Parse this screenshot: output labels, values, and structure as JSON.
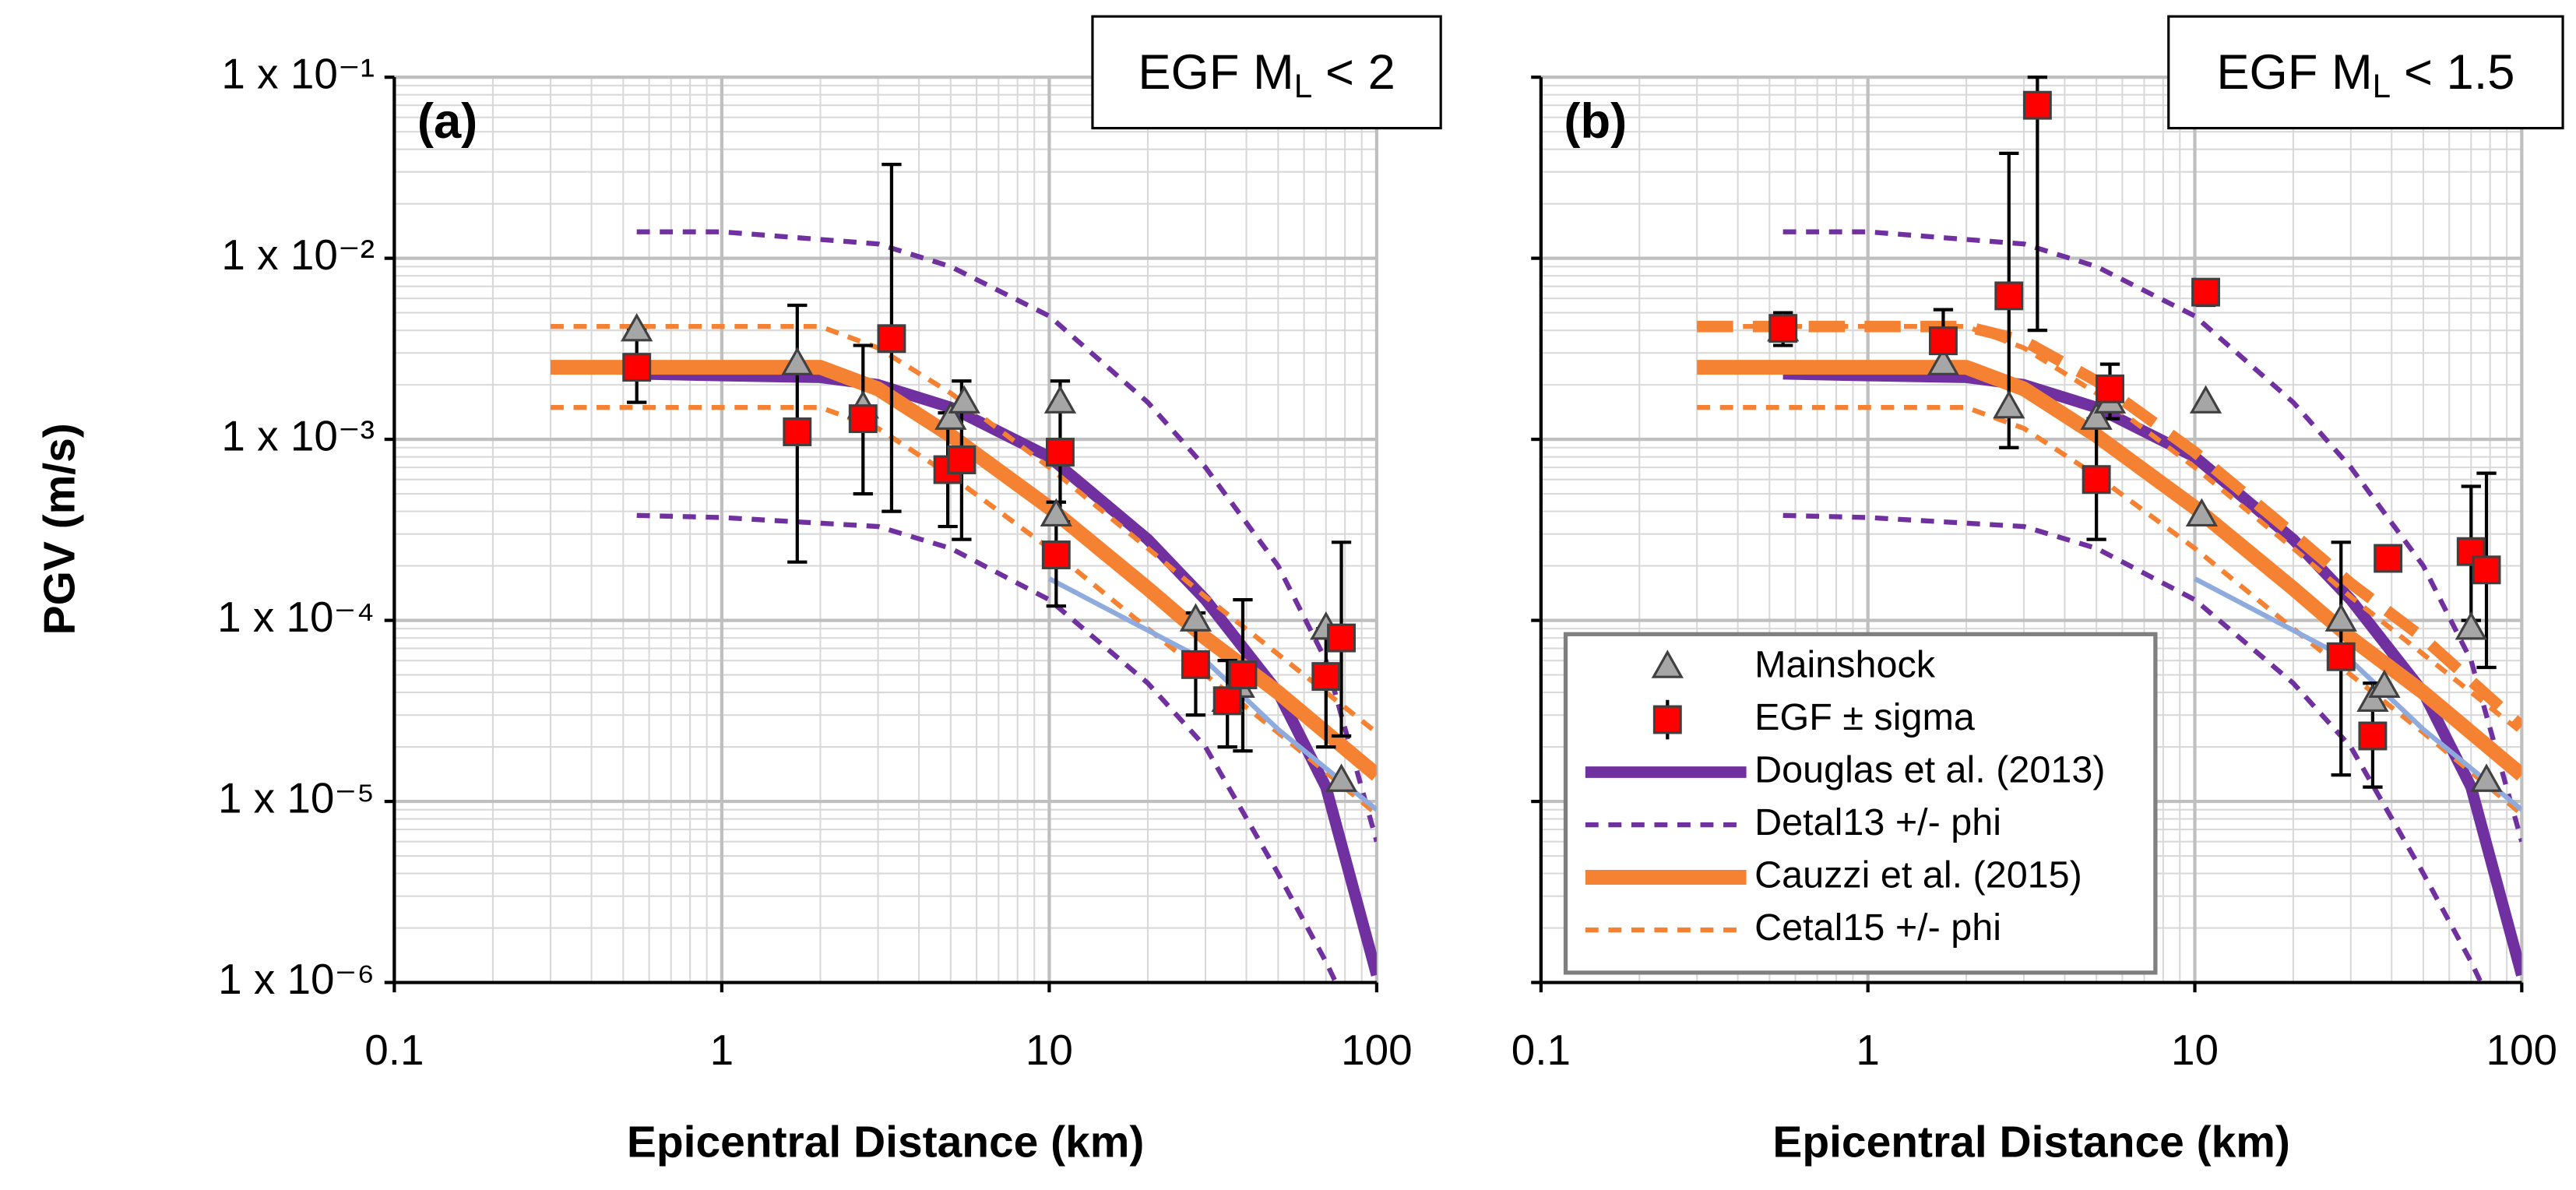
{
  "chart_data": [
    {
      "type": "line",
      "panel_label": "(a)",
      "box_label": {
        "prefix": "EGF M",
        "subscript": "L",
        "suffix": "< 2"
      },
      "xlabel": "Epicentral Distance (km)",
      "ylabel": "PGV (m/s)",
      "xscale": "log",
      "yscale": "log",
      "grid": true,
      "xlim": [
        0.1,
        100
      ],
      "ylim": [
        1e-06,
        0.1
      ],
      "xticks": [
        0.1,
        1,
        10,
        100
      ],
      "yticks": [
        {
          "value": 1e-06,
          "label": "1 x 10⁻⁶"
        },
        {
          "value": 1e-05,
          "label": "1 x 10⁻⁵"
        },
        {
          "value": 0.0001,
          "label": "1 x 10⁻⁴"
        },
        {
          "value": 0.001,
          "label": "1 x 10⁻³"
        },
        {
          "value": 0.01,
          "label": "1 x 10⁻²"
        },
        {
          "value": 0.1,
          "label": "1 x 10⁻¹"
        }
      ],
      "series": [
        {
          "name": "Mainshock",
          "kind": "marker",
          "marker": "triangle",
          "color": "#a6a6a6",
          "x": [
            0.55,
            1.7,
            2.7,
            5.0,
            5.5,
            10.5,
            10.8,
            28,
            35,
            38,
            70,
            78
          ],
          "values": [
            0.004,
            0.0026,
            0.0015,
            0.0013,
            0.0016,
            0.00038,
            0.0016,
            0.0001,
            3.6e-05,
            4.3e-05,
            9e-05,
            1.3e-05
          ]
        },
        {
          "name": "EGF ± sigma",
          "kind": "marker",
          "marker": "square",
          "color": "#ff0000",
          "x": [
            0.55,
            1.7,
            2.7,
            3.3,
            4.9,
            5.4,
            10.5,
            10.8,
            28,
            35,
            39,
            70,
            78
          ],
          "values": [
            0.0025,
            0.0011,
            0.0013,
            0.0036,
            0.00068,
            0.00077,
            0.00023,
            0.00085,
            5.7e-05,
            3.6e-05,
            5e-05,
            4.9e-05,
            8e-05
          ],
          "error_low": [
            0.0016,
            0.00021,
            0.0005,
            0.0004,
            0.00033,
            0.00028,
            0.00012,
            0.00035,
            3e-05,
            2e-05,
            1.9e-05,
            2e-05,
            2.3e-05
          ],
          "error_high": [
            0.004,
            0.0055,
            0.0033,
            0.033,
            0.0014,
            0.0021,
            0.00045,
            0.0021,
            0.00011,
            6e-05,
            0.00013,
            9e-05,
            0.00027
          ]
        },
        {
          "name": "Douglas et al. (2013)",
          "kind": "line",
          "style": "thick",
          "color": "#7030a0",
          "curves": [
            {
              "x": [
                0.55,
                1,
                2,
                3,
                5,
                10,
                20,
                30,
                50,
                70,
                100
              ],
              "values": [
                0.0023,
                0.00225,
                0.0022,
                0.002,
                0.0015,
                0.0008,
                0.00028,
                0.00013,
                4e-05,
                1.2e-05,
                1.1e-06
              ]
            }
          ]
        },
        {
          "name": "Detal13 +/- phi",
          "kind": "line",
          "style": "dashed",
          "color": "#7030a0",
          "curves": [
            {
              "x": [
                0.55,
                1,
                3,
                5,
                10,
                20,
                30,
                50,
                70,
                100
              ],
              "values": [
                0.014,
                0.014,
                0.012,
                0.009,
                0.0048,
                0.0016,
                0.0007,
                0.0002,
                6e-05,
                6e-06
              ]
            },
            {
              "x": [
                0.55,
                1,
                3,
                5,
                10,
                20,
                30,
                50,
                70,
                75
              ],
              "values": [
                0.00038,
                0.00037,
                0.00033,
                0.00025,
                0.00013,
                4.5e-05,
                2e-05,
                4e-06,
                1.3e-06,
                1e-06
              ]
            }
          ]
        },
        {
          "name": "Cauzzi et al. (2015)",
          "kind": "line",
          "style": "thick",
          "color": "#f58232",
          "curves": [
            {
              "x": [
                0.3,
                2,
                3,
                5,
                10,
                20,
                30,
                50,
                100
              ],
              "values": [
                0.0025,
                0.0025,
                0.0019,
                0.00105,
                0.00042,
                0.00015,
                8e-05,
                4e-05,
                1.4e-05
              ]
            }
          ]
        },
        {
          "name": "Cetal15 +/- phi",
          "kind": "line",
          "style": "dashed",
          "color": "#f58232",
          "curves": [
            {
              "x": [
                0.3,
                2,
                3,
                5,
                10,
                20,
                30,
                50,
                100
              ],
              "values": [
                0.0042,
                0.0042,
                0.0032,
                0.0018,
                0.0007,
                0.00025,
                0.000135,
                6.5e-05,
                2.4e-05
              ]
            },
            {
              "x": [
                0.3,
                2,
                3,
                5,
                10,
                20,
                30,
                50,
                100
              ],
              "values": [
                0.0015,
                0.0015,
                0.00115,
                0.00063,
                0.00025,
                9e-05,
                5e-05,
                2.4e-05,
                8.5e-06
              ]
            }
          ]
        },
        {
          "kind": "line",
          "style": "thin",
          "color": "#8faadc",
          "curves": [
            {
              "x": [
                10,
                30,
                50,
                100
              ],
              "values": [
                0.00017,
                6e-05,
                2.5e-05,
                9e-06
              ]
            }
          ]
        }
      ]
    },
    {
      "type": "line",
      "panel_label": "(b)",
      "box_label": {
        "prefix": "EGF M",
        "subscript": "L",
        "suffix": "< 1.5"
      },
      "xlabel": "Epicentral Distance (km)",
      "xscale": "log",
      "yscale": "log",
      "grid": true,
      "ytick_labels": false,
      "legend": "lower left",
      "xlim": [
        0.1,
        100
      ],
      "ylim": [
        1e-06,
        0.1
      ],
      "xticks": [
        0.1,
        1,
        10,
        100
      ],
      "yticks": [
        1e-06,
        1e-05,
        0.0001,
        0.001,
        0.01,
        0.1
      ],
      "series": [
        {
          "name": "Mainshock",
          "kind": "marker",
          "marker": "triangle",
          "color": "#a6a6a6",
          "x": [
            0.55,
            1.7,
            2.7,
            5.0,
            5.5,
            10.5,
            10.8,
            28,
            35,
            38,
            70,
            78
          ],
          "values": [
            0.004,
            0.0026,
            0.0015,
            0.0013,
            0.0016,
            0.00038,
            0.0016,
            0.0001,
            3.6e-05,
            4.3e-05,
            9e-05,
            1.3e-05
          ]
        },
        {
          "name": "EGF ± sigma",
          "kind": "marker",
          "marker": "square",
          "color": "#ff0000",
          "x": [
            0.55,
            1.7,
            2.7,
            3.3,
            5.0,
            5.5,
            10.8,
            28,
            35,
            39,
            70,
            78
          ],
          "values": [
            0.0041,
            0.0035,
            0.0062,
            0.07,
            0.0006,
            0.0019,
            0.0065,
            6.3e-05,
            2.3e-05,
            0.00022,
            0.00024,
            0.00019
          ],
          "error_low": [
            0.0033,
            0.0024,
            0.0009,
            0.004,
            0.00028,
            0.0013,
            0.0055,
            1.4e-05,
            1.2e-05,
            0.00019,
            0.0001,
            5.5e-05
          ],
          "error_high": [
            0.005,
            0.0052,
            0.038,
            0.1,
            0.0013,
            0.0026,
            0.0075,
            0.00027,
            4.5e-05,
            0.00025,
            0.00055,
            0.00065
          ]
        },
        {
          "name": "Douglas et al. (2013)",
          "kind": "line",
          "style": "thick",
          "color": "#7030a0",
          "curves": [
            {
              "x": [
                0.55,
                1,
                2,
                3,
                5,
                10,
                20,
                30,
                50,
                70,
                100
              ],
              "values": [
                0.0023,
                0.00225,
                0.0022,
                0.002,
                0.0015,
                0.0008,
                0.00028,
                0.00013,
                4e-05,
                1.2e-05,
                1.1e-06
              ]
            }
          ]
        },
        {
          "name": "Detal13 +/- phi",
          "kind": "line",
          "style": "dashed",
          "color": "#7030a0",
          "curves": [
            {
              "x": [
                0.55,
                1,
                3,
                5,
                10,
                20,
                30,
                50,
                70,
                100
              ],
              "values": [
                0.014,
                0.014,
                0.012,
                0.009,
                0.0048,
                0.0016,
                0.0007,
                0.0002,
                6e-05,
                6e-06
              ]
            },
            {
              "x": [
                0.55,
                1,
                3,
                5,
                10,
                20,
                30,
                50,
                70,
                75
              ],
              "values": [
                0.00038,
                0.00037,
                0.00033,
                0.00025,
                0.00013,
                4.5e-05,
                2e-05,
                4e-06,
                1.3e-06,
                1e-06
              ]
            }
          ]
        },
        {
          "name": "Cauzzi et al. (2015)",
          "kind": "line",
          "style": "thick",
          "color": "#f58232",
          "curves": [
            {
              "x": [
                0.3,
                2,
                3,
                5,
                10,
                20,
                30,
                50,
                100
              ],
              "values": [
                0.0025,
                0.0025,
                0.0019,
                0.00105,
                0.00042,
                0.00015,
                8e-05,
                4e-05,
                1.4e-05
              ]
            }
          ]
        },
        {
          "name": "Cetal15 +/- phi",
          "kind": "line",
          "style": "dashed",
          "color": "#f58232",
          "curves": [
            {
              "x": [
                0.3,
                2,
                3,
                5,
                10,
                20,
                30,
                50,
                100
              ],
              "values": [
                0.0042,
                0.0042,
                0.0032,
                0.0018,
                0.0007,
                0.00025,
                0.000135,
                6.5e-05,
                2.4e-05
              ]
            },
            {
              "x": [
                0.3,
                2,
                3,
                5,
                10,
                20,
                30,
                50,
                100
              ],
              "values": [
                0.0015,
                0.0015,
                0.00115,
                0.00063,
                0.00025,
                9e-05,
                5e-05,
                2.4e-05,
                8.5e-06
              ]
            }
          ]
        },
        {
          "kind": "line",
          "style": "thick-dashed",
          "color": "#f58232",
          "curves": [
            {
              "x": [
                0.3,
                2,
                3,
                5,
                10,
                20,
                30,
                50,
                100
              ],
              "values": [
                0.0042,
                0.0042,
                0.0035,
                0.0021,
                0.00085,
                0.0003,
                0.00016,
                8e-05,
                2.6e-05
              ]
            }
          ]
        },
        {
          "kind": "line",
          "style": "thin",
          "color": "#8faadc",
          "curves": [
            {
              "x": [
                10,
                30,
                50,
                100
              ],
              "values": [
                0.00017,
                6e-05,
                2.5e-05,
                9e-06
              ]
            }
          ]
        }
      ]
    }
  ]
}
